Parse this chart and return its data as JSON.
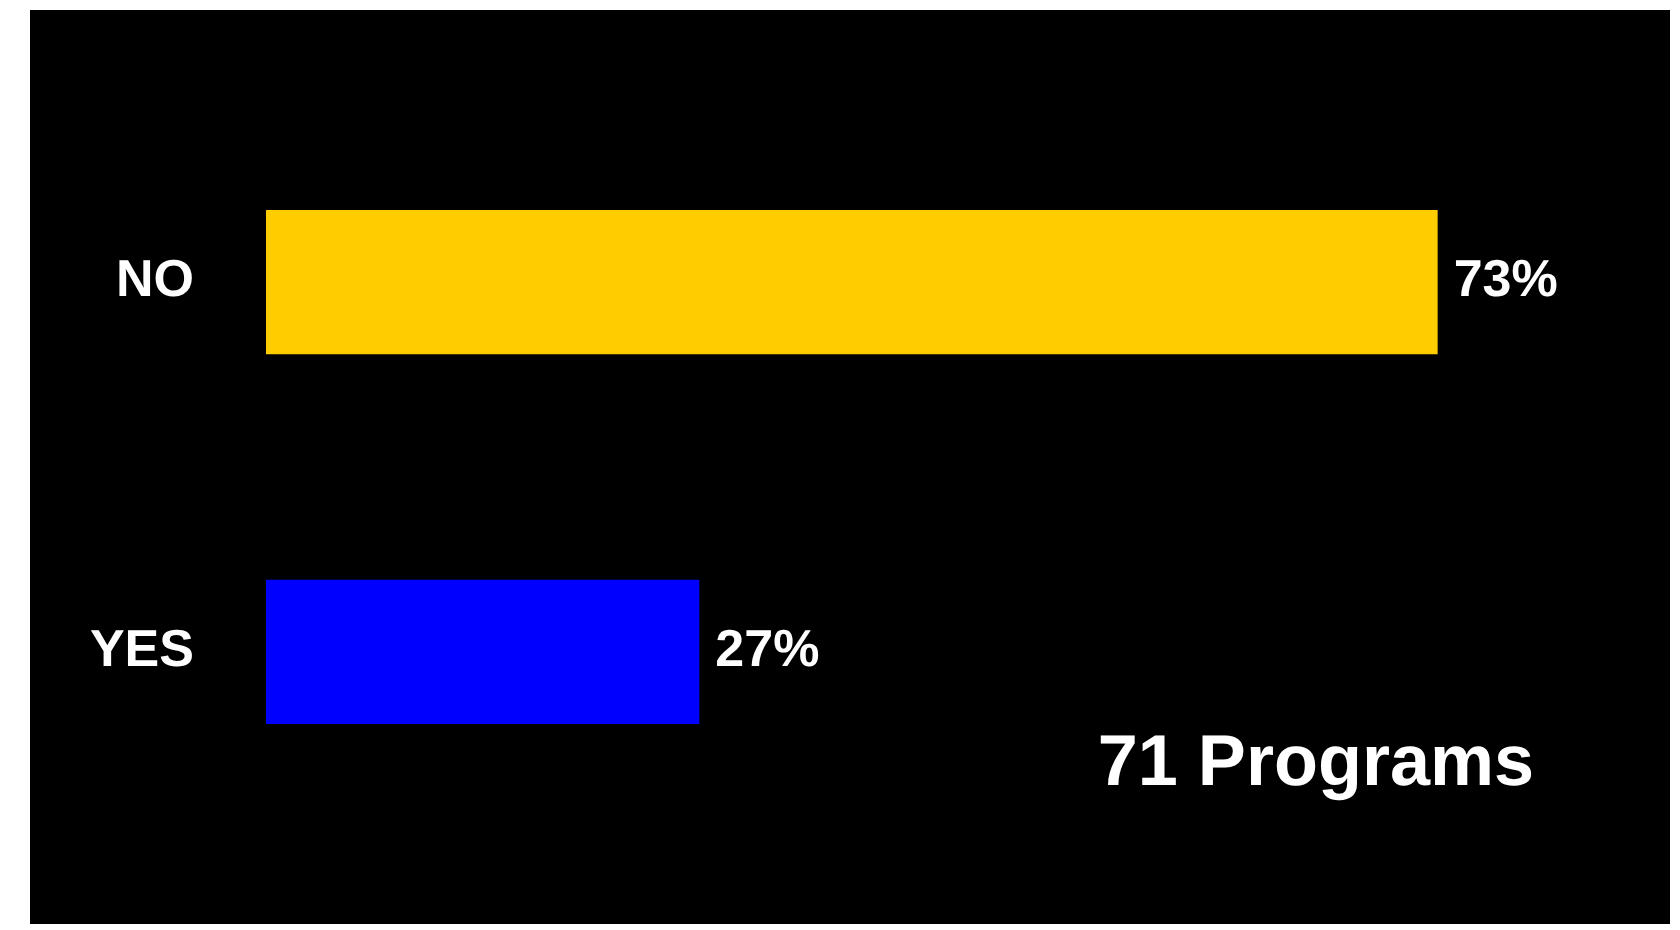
{
  "chart_data": {
    "type": "bar",
    "orientation": "horizontal",
    "categories": [
      "NO",
      "YES"
    ],
    "values": [
      73,
      27
    ],
    "colors": [
      "#ffcc00",
      "#0000ff"
    ],
    "value_labels": [
      "73%",
      "27%"
    ],
    "annotations": [
      "71 Programs"
    ],
    "legend": false
  }
}
